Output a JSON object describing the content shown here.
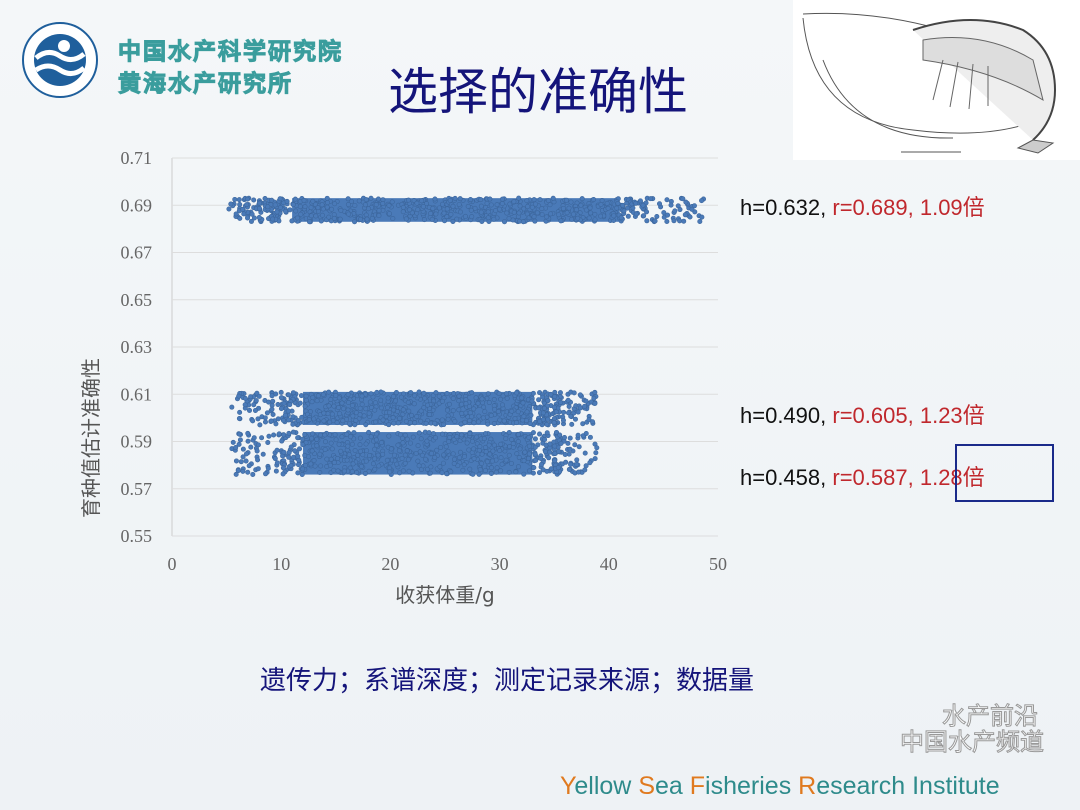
{
  "header": {
    "institute_line1": "中国水产科学研究院",
    "institute_line2": "黄海水产研究所",
    "title": "选择的准确性",
    "logo_icon": "yellow-sea-fisheries-logo"
  },
  "illustration": "shrimp-anatomy-drawing",
  "annotations": [
    {
      "h": "h=0.632,",
      "r": "r=0.689,",
      "fold": "1.09倍"
    },
    {
      "h": "h=0.490,",
      "r": "r=0.605,",
      "fold": "1.23倍"
    },
    {
      "h": "h=0.458,",
      "r": "r=0.587,",
      "fold": "1.28倍",
      "boxed": true
    }
  ],
  "note": "遗传力；系谱深度；测定记录来源；数据量",
  "footer": {
    "Y": "Y",
    "ellow": "ellow ",
    "S": "S",
    "ea": "ea ",
    "F": "F",
    "isheries": "isheries ",
    "R": "R",
    "esearch": "esearch Institute"
  },
  "watermark": {
    "line1": "水产前沿",
    "line2": "中国水产频道"
  },
  "colors": {
    "title": "#14147a",
    "points": "#4a7ab8",
    "highlight": "#c0282d",
    "footer_teal": "#2e8b8b",
    "footer_orange": "#e07a1f"
  },
  "chart_data": {
    "type": "scatter",
    "xlabel": "收获体重/g",
    "ylabel": "育种值估计准确性",
    "xlim": [
      0,
      50
    ],
    "ylim": [
      0.55,
      0.71
    ],
    "xticks": [
      "0",
      "10",
      "20",
      "30",
      "40",
      "50"
    ],
    "yticks": [
      "0.55",
      "0.57",
      "0.59",
      "0.61",
      "0.63",
      "0.65",
      "0.67",
      "0.69",
      "0.71"
    ],
    "grid": "horizontal",
    "series": [
      {
        "x_range": [
          5,
          49
        ],
        "y_range": [
          0.683,
          0.693
        ],
        "x_core": [
          9,
          43
        ]
      },
      {
        "x_range": [
          5,
          39
        ],
        "y_range": [
          0.597,
          0.611
        ],
        "x_core": [
          10,
          35
        ]
      },
      {
        "x_range": [
          5,
          39
        ],
        "y_range": [
          0.576,
          0.594
        ],
        "x_core": [
          10,
          35
        ]
      }
    ]
  }
}
